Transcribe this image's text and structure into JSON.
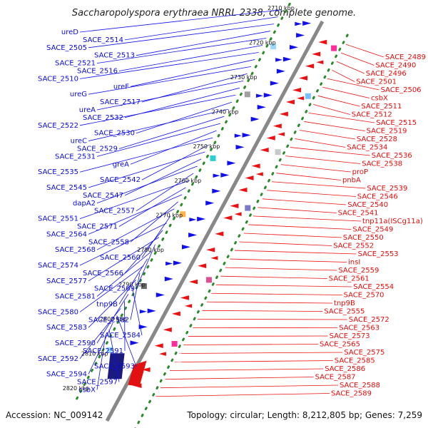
{
  "title": "Saccharopolyspora erythraea NRRL 2338, complete genome.",
  "footer": {
    "accession": "Accession: NC_009142",
    "topology": "Topology: circular; Length: 8,212,805 bp; Genes: 7,259"
  },
  "colors": {
    "backbone": "#888888",
    "forward": "#1010ee",
    "reverse": "#ee1010",
    "dots": "#2a8a2a"
  },
  "ticks": [
    "2710 kbp",
    "2720 kbp",
    "2730 kbp",
    "2740 kbp",
    "2750 kbp",
    "2760 kbp",
    "2770 kbp",
    "2780 kbp",
    "2790 kbp",
    "2800 kbp",
    "2810 kbp",
    "2820 kbp"
  ],
  "left_labels": [
    "ureD",
    "SACE_2514",
    "SACE_2505",
    "SACE_2513",
    "SACE_2521",
    "SACE_2516",
    "SACE_2510",
    "ureF",
    "ureG",
    "SACE_2517",
    "ureA",
    "SACE_2532",
    "SACE_2522",
    "SACE_2530",
    "ureC",
    "SACE_2529",
    "SACE_2531",
    "greA",
    "SACE_2535",
    "SACE_2542",
    "SACE_2545",
    "SACE_2547",
    "dapA2",
    "SACE_2557",
    "SACE_2551",
    "SACE_2571",
    "SACE_2564",
    "SACE_2558",
    "SACE_2568",
    "SACE_2560",
    "SACE_2574",
    "SACE_2566",
    "SACE_2577",
    "SACE_2569",
    "SACE_2581",
    "tnp9B",
    "SACE_2580",
    "SACE_2582",
    "SACE_2583",
    "SACE_2584",
    "SACE_2590",
    "SACE_2591",
    "SACE_2592",
    "SACE_2593",
    "SACE_2594",
    "SACE_2597",
    "csbX"
  ],
  "right_labels": [
    "SACE_2489",
    "SACE_2490",
    "SACE_2496",
    "SACE_2501",
    "SACE_2506",
    "csbX",
    "SACE_2511",
    "SACE_2512",
    "SACE_2515",
    "SACE_2519",
    "SACE_2528",
    "SACE_2534",
    "SACE_2536",
    "SACE_2538",
    "proP",
    "pnbA",
    "SACE_2539",
    "SACE_2546",
    "SACE_2540",
    "SACE_2541",
    "tnp11a(ISCg11a)",
    "SACE_2549",
    "SACE_2550",
    "SACE_2552",
    "SACE_2553",
    "insI",
    "SACE_2559",
    "SACE_2561",
    "SACE_2554",
    "SACE_2570",
    "tnp9B",
    "SACE_2555",
    "SACE_2572",
    "SACE_2563",
    "SACE_2573",
    "SACE_2565",
    "SACE_2575",
    "SACE_2585",
    "SACE_2586",
    "SACE_2587",
    "SACE_2588",
    "SACE_2589"
  ]
}
